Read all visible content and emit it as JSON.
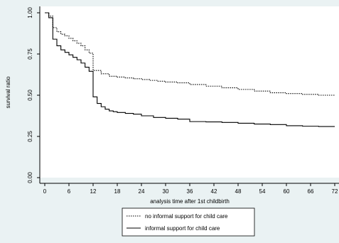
{
  "chart_data": {
    "type": "line",
    "title": "",
    "xlabel": "analysis time after 1st childbirth",
    "ylabel": "survival ratio",
    "xlim": [
      0,
      72
    ],
    "ylim": [
      0,
      1
    ],
    "x_ticks": [
      0,
      6,
      12,
      18,
      24,
      30,
      36,
      42,
      48,
      54,
      60,
      66,
      72
    ],
    "y_ticks": [
      0.0,
      0.25,
      0.5,
      0.75,
      1.0
    ],
    "y_tick_labels": [
      "0.00",
      "0.25",
      "0.50",
      "0.75",
      "1.00"
    ],
    "grid": false,
    "legend_position": "bottom",
    "step": true,
    "series": [
      {
        "name": "no informal support for child care",
        "style": "dotted",
        "color": "#000000",
        "x": [
          0,
          1,
          2,
          3,
          4,
          5,
          6,
          7,
          8,
          9,
          10,
          11,
          12,
          14,
          16,
          18,
          20,
          22,
          24,
          26,
          28,
          30,
          33,
          36,
          40,
          44,
          48,
          52,
          56,
          60,
          64,
          68,
          72
        ],
        "y": [
          1.0,
          0.98,
          0.91,
          0.885,
          0.87,
          0.86,
          0.845,
          0.83,
          0.815,
          0.8,
          0.775,
          0.755,
          0.65,
          0.63,
          0.615,
          0.61,
          0.605,
          0.6,
          0.595,
          0.59,
          0.585,
          0.58,
          0.575,
          0.565,
          0.555,
          0.545,
          0.535,
          0.525,
          0.515,
          0.51,
          0.505,
          0.5,
          0.5
        ]
      },
      {
        "name": "informal support for child care",
        "style": "solid",
        "color": "#000000",
        "x": [
          0,
          1,
          2,
          3,
          4,
          5,
          6,
          7,
          8,
          9,
          10,
          11,
          12,
          13,
          14,
          15,
          16,
          17,
          18,
          20,
          22,
          24,
          27,
          30,
          33,
          36,
          40,
          44,
          48,
          52,
          56,
          60,
          64,
          68,
          72
        ],
        "y": [
          1.0,
          0.97,
          0.84,
          0.8,
          0.775,
          0.76,
          0.745,
          0.73,
          0.715,
          0.695,
          0.67,
          0.645,
          0.49,
          0.45,
          0.43,
          0.415,
          0.405,
          0.4,
          0.395,
          0.39,
          0.385,
          0.375,
          0.365,
          0.36,
          0.355,
          0.34,
          0.338,
          0.335,
          0.33,
          0.325,
          0.322,
          0.315,
          0.312,
          0.31,
          0.31
        ]
      }
    ]
  }
}
